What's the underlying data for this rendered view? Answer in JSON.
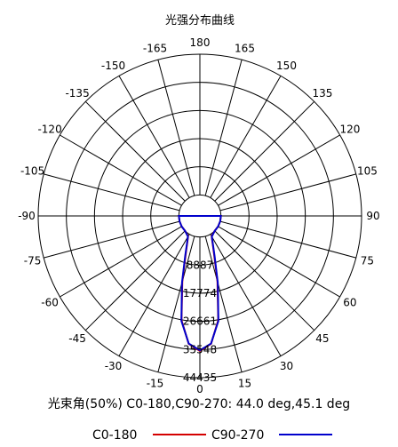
{
  "chart_data": {
    "type": "polar",
    "title": "光强分布曲线",
    "angle_ticks": [
      "180",
      "165",
      "150",
      "135",
      "120",
      "105",
      "90",
      "75",
      "60",
      "45",
      "30",
      "15",
      "0",
      "-15",
      "-30",
      "-45",
      "-60",
      "-75",
      "-90",
      "-105",
      "-120",
      "-135",
      "-150",
      "-165"
    ],
    "angle_tick_values": [
      180,
      165,
      150,
      135,
      120,
      105,
      90,
      75,
      60,
      45,
      30,
      15,
      0,
      -15,
      -30,
      -45,
      -60,
      -75,
      -90,
      -105,
      -120,
      -135,
      -150,
      -165
    ],
    "radial_ticks": [
      "8887",
      "17774",
      "26661",
      "35548",
      "44435"
    ],
    "radial_tick_values": [
      8887,
      17774,
      26661,
      35548,
      44435
    ],
    "rlim": [
      0,
      44435
    ],
    "grid": true,
    "legend_position": "bottom",
    "series": [
      {
        "name": "C0-180",
        "color": "#d40000",
        "angles": [
          -90,
          -75,
          -60,
          -45,
          -30,
          -20,
          -15,
          -10,
          -5,
          0,
          5,
          10,
          15,
          20,
          30,
          45,
          60,
          75,
          90
        ],
        "values": [
          0,
          0,
          0,
          0,
          800,
          6600,
          14800,
          26800,
          33900,
          36000,
          33900,
          26800,
          14800,
          6600,
          800,
          0,
          0,
          0,
          0
        ]
      },
      {
        "name": "C90-270",
        "color": "#0000cc",
        "angles": [
          -90,
          -75,
          -60,
          -45,
          -30,
          -20,
          -15,
          -10,
          -5,
          0,
          5,
          10,
          15,
          20,
          30,
          45,
          60,
          75,
          90
        ],
        "values": [
          0,
          0,
          0,
          0,
          900,
          7000,
          15200,
          27000,
          33800,
          35800,
          33800,
          27000,
          15200,
          7000,
          900,
          0,
          0,
          0,
          0
        ]
      }
    ]
  },
  "info_text": "光束角(50%) C0-180,C90-270: 44.0 deg,45.1 deg"
}
